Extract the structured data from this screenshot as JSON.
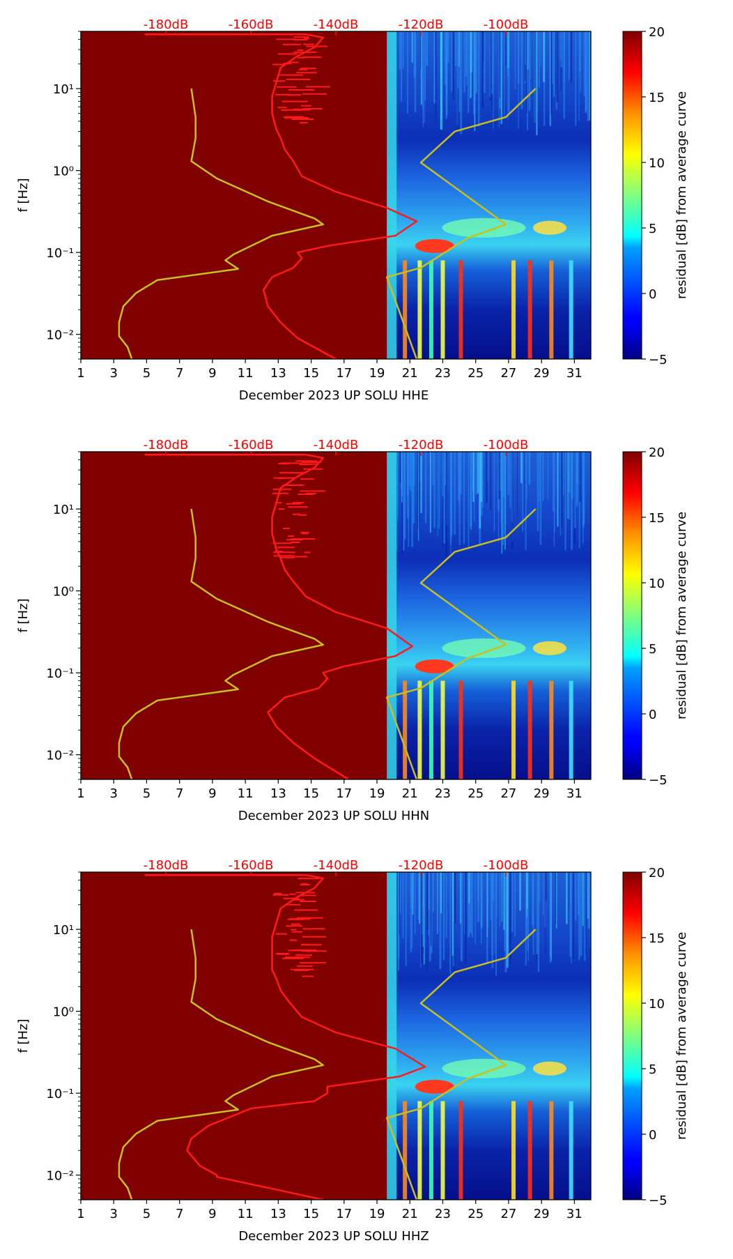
{
  "figure": {
    "ylabel": "f [Hz]",
    "colorbar_label": "residual [dB] from average curve",
    "colorbar_ticks": [
      "20",
      "15",
      "10",
      "5",
      "0",
      "−5"
    ],
    "colorbar_range": [
      -5,
      20
    ],
    "x_ticks": [
      "1",
      "3",
      "5",
      "7",
      "9",
      "11",
      "13",
      "15",
      "17",
      "19",
      "21",
      "23",
      "25",
      "27",
      "29",
      "31"
    ],
    "y_ticks": [
      "10¹",
      "10⁰",
      "10⁻¹",
      "10⁻²"
    ],
    "db_ticks": [
      "-180dB",
      "-160dB",
      "-140dB",
      "-120dB",
      "-100dB"
    ],
    "colors": {
      "background_fill": "#800000",
      "psd_curve": "#ff1a1a",
      "noise_model": "#c8c020",
      "db_label": "#ff0000"
    }
  },
  "chart_data": [
    {
      "type": "heatmap",
      "title": "December 2023 UP SOLU  HHE",
      "xlabel": "December 2023 UP SOLU  HHE",
      "ylabel": "f [Hz]",
      "xlim": [
        1,
        32
      ],
      "ylim_hz": [
        0.005,
        50
      ],
      "spectrogram_start_day": 19.6,
      "db_axis": [
        -200,
        -80
      ],
      "noise_model_curve": {
        "name": "noise model",
        "points_db_hz": [
          [
            -188,
            0.005
          ],
          [
            -189,
            0.007
          ],
          [
            -191,
            0.0095
          ],
          [
            -191,
            0.014
          ],
          [
            -190,
            0.022
          ],
          [
            -187,
            0.032
          ],
          [
            -182,
            0.046
          ],
          [
            -163,
            0.063
          ],
          [
            -166,
            0.08
          ],
          [
            -164,
            0.095
          ],
          [
            -155,
            0.16
          ],
          [
            -143,
            0.22
          ],
          [
            -145,
            0.26
          ],
          [
            -156,
            0.42
          ],
          [
            -168,
            0.8
          ],
          [
            -174,
            1.3
          ],
          [
            -173,
            2.5
          ],
          [
            -173,
            4.5
          ],
          [
            -174,
            10
          ]
        ]
      },
      "noise_model_curve_high": {
        "name": "noise model (high)",
        "points_db_hz": [
          [
            -121,
            0.005
          ],
          [
            -128,
            0.05
          ],
          [
            -120,
            0.065
          ],
          [
            -109,
            0.15
          ],
          [
            -100,
            0.22
          ],
          [
            -120,
            1.25
          ],
          [
            -112,
            3
          ],
          [
            -100,
            4.5
          ],
          [
            -93,
            10
          ]
        ]
      },
      "psd_curve": {
        "name": "average PSD",
        "points_db_hz": [
          [
            -140,
            0.005
          ],
          [
            -149,
            0.009
          ],
          [
            -153,
            0.014
          ],
          [
            -156,
            0.022
          ],
          [
            -157,
            0.035
          ],
          [
            -155,
            0.05
          ],
          [
            -150,
            0.065
          ],
          [
            -148,
            0.085
          ],
          [
            -149,
            0.1
          ],
          [
            -142,
            0.12
          ],
          [
            -126,
            0.16
          ],
          [
            -121,
            0.24
          ],
          [
            -128,
            0.35
          ],
          [
            -140,
            0.55
          ],
          [
            -148,
            0.85
          ],
          [
            -150,
            1.3
          ],
          [
            -152,
            1.8
          ],
          [
            -153,
            2.5
          ],
          [
            -154,
            3.2
          ],
          [
            -155,
            5
          ],
          [
            -155,
            8
          ],
          [
            -154,
            12
          ],
          [
            -153,
            18
          ],
          [
            -149,
            25
          ],
          [
            -145,
            32
          ],
          [
            -143,
            42
          ],
          [
            -147,
            46
          ],
          [
            -160,
            46
          ],
          [
            -165,
            46
          ],
          [
            -185,
            46
          ]
        ]
      }
    },
    {
      "type": "heatmap",
      "title": "December 2023 UP SOLU  HHN",
      "xlabel": "December 2023 UP SOLU  HHN",
      "ylabel": "f [Hz]",
      "xlim": [
        1,
        32
      ],
      "ylim_hz": [
        0.005,
        50
      ],
      "spectrogram_start_day": 19.6,
      "db_axis": [
        -200,
        -80
      ],
      "noise_model_curve": {
        "name": "noise model",
        "points_db_hz": [
          [
            -188,
            0.005
          ],
          [
            -189,
            0.007
          ],
          [
            -191,
            0.0095
          ],
          [
            -191,
            0.014
          ],
          [
            -190,
            0.022
          ],
          [
            -187,
            0.032
          ],
          [
            -182,
            0.046
          ],
          [
            -163,
            0.063
          ],
          [
            -166,
            0.08
          ],
          [
            -164,
            0.095
          ],
          [
            -155,
            0.16
          ],
          [
            -143,
            0.22
          ],
          [
            -145,
            0.26
          ],
          [
            -156,
            0.42
          ],
          [
            -168,
            0.8
          ],
          [
            -174,
            1.3
          ],
          [
            -173,
            2.5
          ],
          [
            -173,
            4.5
          ],
          [
            -174,
            10
          ]
        ]
      },
      "noise_model_curve_high": {
        "name": "noise model (high)",
        "points_db_hz": [
          [
            -121,
            0.005
          ],
          [
            -128,
            0.05
          ],
          [
            -120,
            0.065
          ],
          [
            -109,
            0.15
          ],
          [
            -100,
            0.22
          ],
          [
            -120,
            1.25
          ],
          [
            -112,
            3
          ],
          [
            -100,
            4.5
          ],
          [
            -93,
            10
          ]
        ]
      },
      "psd_curve": {
        "name": "average PSD",
        "points_db_hz": [
          [
            -137,
            0.005
          ],
          [
            -145,
            0.009
          ],
          [
            -150,
            0.014
          ],
          [
            -154,
            0.022
          ],
          [
            -156,
            0.033
          ],
          [
            -152,
            0.05
          ],
          [
            -144,
            0.065
          ],
          [
            -142,
            0.085
          ],
          [
            -143,
            0.1
          ],
          [
            -138,
            0.12
          ],
          [
            -126,
            0.16
          ],
          [
            -122,
            0.21
          ],
          [
            -128,
            0.35
          ],
          [
            -140,
            0.55
          ],
          [
            -147,
            0.85
          ],
          [
            -150,
            1.3
          ],
          [
            -152,
            1.8
          ],
          [
            -153,
            2.5
          ],
          [
            -154,
            3.2
          ],
          [
            -155,
            5
          ],
          [
            -155,
            8
          ],
          [
            -154,
            12
          ],
          [
            -153,
            18
          ],
          [
            -149,
            25
          ],
          [
            -145,
            32
          ],
          [
            -143,
            42
          ],
          [
            -147,
            46
          ],
          [
            -160,
            46
          ],
          [
            -165,
            46
          ],
          [
            -185,
            46
          ]
        ]
      }
    },
    {
      "type": "heatmap",
      "title": "December 2023 UP SOLU  HHZ",
      "xlabel": "December 2023 UP SOLU  HHZ",
      "ylabel": "f [Hz]",
      "xlim": [
        1,
        32
      ],
      "ylim_hz": [
        0.005,
        50
      ],
      "spectrogram_start_day": 19.6,
      "db_axis": [
        -200,
        -80
      ],
      "noise_model_curve": {
        "name": "noise model",
        "points_db_hz": [
          [
            -188,
            0.005
          ],
          [
            -189,
            0.007
          ],
          [
            -191,
            0.0095
          ],
          [
            -191,
            0.014
          ],
          [
            -190,
            0.022
          ],
          [
            -187,
            0.032
          ],
          [
            -182,
            0.046
          ],
          [
            -163,
            0.063
          ],
          [
            -166,
            0.08
          ],
          [
            -164,
            0.095
          ],
          [
            -155,
            0.16
          ],
          [
            -143,
            0.22
          ],
          [
            -145,
            0.26
          ],
          [
            -156,
            0.42
          ],
          [
            -168,
            0.8
          ],
          [
            -174,
            1.3
          ],
          [
            -173,
            2.5
          ],
          [
            -173,
            4.5
          ],
          [
            -174,
            10
          ]
        ]
      },
      "noise_model_curve_high": {
        "name": "noise model (high)",
        "points_db_hz": [
          [
            -121,
            0.005
          ],
          [
            -128,
            0.05
          ],
          [
            -120,
            0.065
          ],
          [
            -109,
            0.15
          ],
          [
            -100,
            0.22
          ],
          [
            -120,
            1.25
          ],
          [
            -112,
            3
          ],
          [
            -100,
            4.5
          ],
          [
            -93,
            10
          ]
        ]
      },
      "psd_curve": {
        "name": "average PSD",
        "points_db_hz": [
          [
            -143,
            0.005
          ],
          [
            -156,
            0.007
          ],
          [
            -168,
            0.0095
          ],
          [
            -168,
            0.01
          ],
          [
            -172,
            0.013
          ],
          [
            -175,
            0.02
          ],
          [
            -174,
            0.028
          ],
          [
            -170,
            0.04
          ],
          [
            -160,
            0.065
          ],
          [
            -145,
            0.08
          ],
          [
            -142,
            0.1
          ],
          [
            -142,
            0.12
          ],
          [
            -125,
            0.16
          ],
          [
            -119,
            0.21
          ],
          [
            -126,
            0.35
          ],
          [
            -140,
            0.55
          ],
          [
            -148,
            0.85
          ],
          [
            -151,
            1.3
          ],
          [
            -153,
            1.8
          ],
          [
            -154,
            2.5
          ],
          [
            -155,
            3.2
          ],
          [
            -155,
            5
          ],
          [
            -155,
            8
          ],
          [
            -154,
            12
          ],
          [
            -153,
            18
          ],
          [
            -149,
            25
          ],
          [
            -145,
            32
          ],
          [
            -143,
            42
          ],
          [
            -147,
            46
          ],
          [
            -160,
            46
          ],
          [
            -165,
            46
          ],
          [
            -185,
            46
          ]
        ]
      }
    }
  ]
}
